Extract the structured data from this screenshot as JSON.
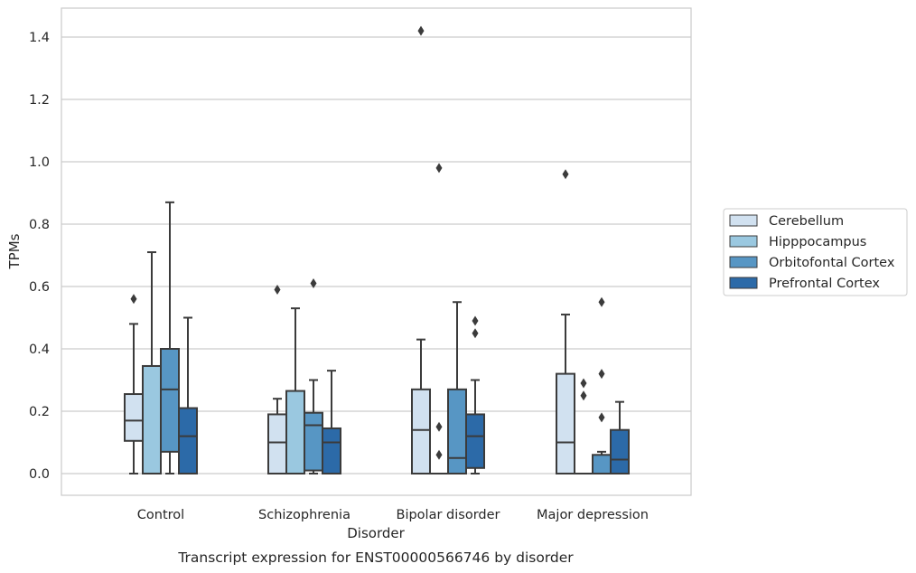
{
  "chart_data": {
    "type": "boxplot",
    "title": "Transcript expression for ENST00000566746 by disorder",
    "xlabel": "Disorder",
    "ylabel": "TPMs",
    "ylim": [
      -0.07,
      1.49
    ],
    "yticks": [
      "0.0",
      "0.2",
      "0.4",
      "0.6",
      "0.8",
      "1.0",
      "1.2",
      "1.4"
    ],
    "grid": true,
    "legend_position": "right",
    "categories": [
      "Control",
      "Schizophrenia",
      "Bipolar disorder",
      "Major depression"
    ],
    "series": [
      {
        "name": "Cerebellum",
        "color": "#d1e1f0",
        "boxes": [
          {
            "min": 0.0,
            "q1": 0.105,
            "median": 0.17,
            "q3": 0.255,
            "max": 0.48,
            "outliers": [
              0.56
            ]
          },
          {
            "min": 0.0,
            "q1": 0.0,
            "median": 0.1,
            "q3": 0.19,
            "max": 0.24,
            "outliers": [
              0.59
            ]
          },
          {
            "min": 0.0,
            "q1": 0.0,
            "median": 0.14,
            "q3": 0.27,
            "max": 0.43,
            "outliers": [
              1.42
            ]
          },
          {
            "min": 0.0,
            "q1": 0.0,
            "median": 0.1,
            "q3": 0.32,
            "max": 0.51,
            "outliers": [
              0.96
            ]
          }
        ]
      },
      {
        "name": "Hipppocampus",
        "color": "#9ac8e0",
        "boxes": [
          {
            "min": 0.0,
            "q1": 0.0,
            "median": 0.0,
            "q3": 0.345,
            "max": 0.71,
            "outliers": []
          },
          {
            "min": 0.0,
            "q1": 0.0,
            "median": 0.0,
            "q3": 0.265,
            "max": 0.53,
            "outliers": []
          },
          {
            "min": 0.0,
            "q1": 0.0,
            "median": 0.0,
            "q3": 0.0,
            "max": 0.0,
            "outliers": [
              0.98,
              0.15,
              0.06
            ]
          },
          {
            "min": 0.0,
            "q1": 0.0,
            "median": 0.0,
            "q3": 0.0,
            "max": 0.0,
            "outliers": [
              0.29,
              0.25
            ]
          }
        ]
      },
      {
        "name": "Orbitofontal Cortex",
        "color": "#5796c4",
        "boxes": [
          {
            "min": 0.0,
            "q1": 0.07,
            "median": 0.27,
            "q3": 0.4,
            "max": 0.87,
            "outliers": []
          },
          {
            "min": 0.0,
            "q1": 0.01,
            "median": 0.155,
            "q3": 0.195,
            "max": 0.3,
            "outliers": [
              0.61
            ]
          },
          {
            "min": 0.0,
            "q1": 0.0,
            "median": 0.05,
            "q3": 0.27,
            "max": 0.55,
            "outliers": []
          },
          {
            "min": 0.0,
            "q1": 0.0,
            "median": 0.0,
            "q3": 0.06,
            "max": 0.07,
            "outliers": [
              0.55,
              0.32,
              0.18
            ]
          }
        ]
      },
      {
        "name": "Prefrontal Cortex",
        "color": "#2c6aa8",
        "boxes": [
          {
            "min": 0.0,
            "q1": 0.0,
            "median": 0.12,
            "q3": 0.21,
            "max": 0.5,
            "outliers": []
          },
          {
            "min": 0.0,
            "q1": 0.0,
            "median": 0.1,
            "q3": 0.145,
            "max": 0.33,
            "outliers": []
          },
          {
            "min": 0.0,
            "q1": 0.018,
            "median": 0.12,
            "q3": 0.19,
            "max": 0.3,
            "outliers": [
              0.49,
              0.45
            ]
          },
          {
            "min": 0.0,
            "q1": 0.0,
            "median": 0.045,
            "q3": 0.14,
            "max": 0.23,
            "outliers": []
          }
        ]
      }
    ]
  }
}
